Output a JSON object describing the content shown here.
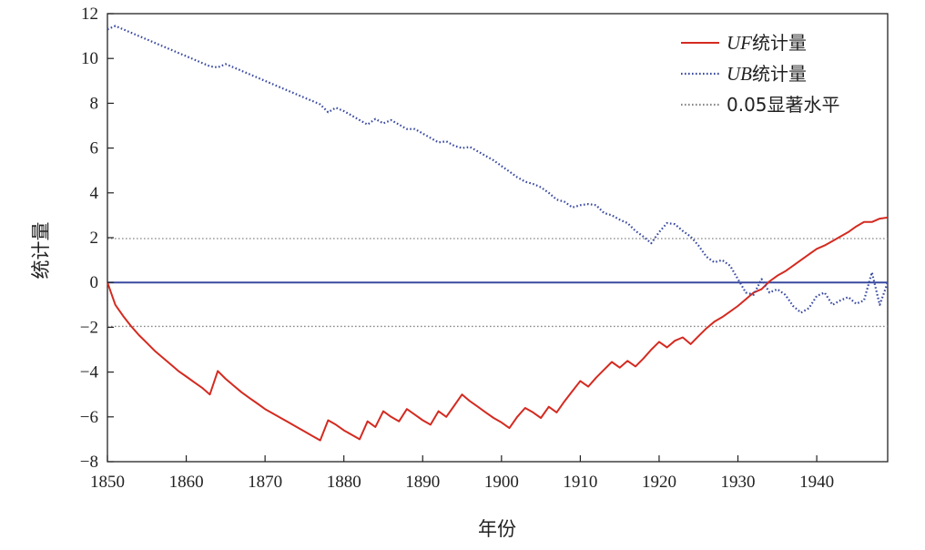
{
  "chart_data": {
    "type": "line",
    "xlabel": "年份",
    "ylabel": "统计量",
    "xlim": [
      1850,
      1949
    ],
    "ylim": [
      -8,
      12
    ],
    "xticks": [
      1850,
      1860,
      1870,
      1880,
      1890,
      1900,
      1910,
      1920,
      1930,
      1940
    ],
    "yticks": [
      -8,
      -6,
      -4,
      -2,
      0,
      2,
      4,
      6,
      8,
      10,
      12
    ],
    "grid": false,
    "legend_position": "top-right",
    "series": [
      {
        "name_prefix": "UF",
        "name_suffix": "统计量",
        "color": "#d42a20",
        "style": "solid",
        "x": [
          1850,
          1851,
          1852,
          1853,
          1854,
          1855,
          1856,
          1857,
          1858,
          1859,
          1860,
          1861,
          1862,
          1863,
          1864,
          1865,
          1866,
          1867,
          1868,
          1869,
          1870,
          1871,
          1872,
          1873,
          1874,
          1875,
          1876,
          1877,
          1878,
          1879,
          1880,
          1881,
          1882,
          1883,
          1884,
          1885,
          1886,
          1887,
          1888,
          1889,
          1890,
          1891,
          1892,
          1893,
          1894,
          1895,
          1896,
          1897,
          1898,
          1899,
          1900,
          1901,
          1902,
          1903,
          1904,
          1905,
          1906,
          1907,
          1908,
          1909,
          1910,
          1911,
          1912,
          1913,
          1914,
          1915,
          1916,
          1917,
          1918,
          1919,
          1920,
          1921,
          1922,
          1923,
          1924,
          1925,
          1926,
          1927,
          1928,
          1929,
          1930,
          1931,
          1932,
          1933,
          1934,
          1935,
          1936,
          1937,
          1938,
          1939,
          1940,
          1941,
          1942,
          1943,
          1944,
          1945,
          1946,
          1947,
          1948,
          1949
        ],
        "values": [
          0,
          -1,
          -1.5,
          -1.95,
          -2.35,
          -2.7,
          -3.05,
          -3.35,
          -3.65,
          -3.95,
          -4.2,
          -4.45,
          -4.7,
          -5.0,
          -3.95,
          -4.3,
          -4.6,
          -4.9,
          -5.15,
          -5.4,
          -5.65,
          -5.85,
          -6.05,
          -6.25,
          -6.45,
          -6.65,
          -6.85,
          -7.05,
          -6.15,
          -6.35,
          -6.6,
          -6.8,
          -7.0,
          -6.2,
          -6.45,
          -5.75,
          -6.0,
          -6.2,
          -5.65,
          -5.9,
          -6.15,
          -6.35,
          -5.75,
          -6.0,
          -5.5,
          -5.0,
          -5.3,
          -5.55,
          -5.8,
          -6.05,
          -6.25,
          -6.5,
          -6.0,
          -5.6,
          -5.8,
          -6.05,
          -5.55,
          -5.8,
          -5.3,
          -4.85,
          -4.4,
          -4.65,
          -4.25,
          -3.9,
          -3.55,
          -3.8,
          -3.5,
          -3.75,
          -3.4,
          -3.0,
          -2.65,
          -2.9,
          -2.6,
          -2.45,
          -2.75,
          -2.4,
          -2.05,
          -1.75,
          -1.55,
          -1.3,
          -1.05,
          -0.75,
          -0.45,
          -0.3,
          0.05,
          0.3,
          0.5,
          0.75,
          1.0,
          1.25,
          1.5,
          1.65,
          1.85,
          2.05,
          2.25,
          2.5,
          2.7,
          2.7,
          2.85,
          2.9
        ]
      },
      {
        "name_prefix": "UB",
        "name_suffix": "统计量",
        "color": "#3a4aa0",
        "style": "dotted",
        "x": [
          1850,
          1851,
          1852,
          1853,
          1854,
          1855,
          1856,
          1857,
          1858,
          1859,
          1860,
          1861,
          1862,
          1863,
          1864,
          1865,
          1866,
          1867,
          1868,
          1869,
          1870,
          1871,
          1872,
          1873,
          1874,
          1875,
          1876,
          1877,
          1878,
          1879,
          1880,
          1881,
          1882,
          1883,
          1884,
          1885,
          1886,
          1887,
          1888,
          1889,
          1890,
          1891,
          1892,
          1893,
          1894,
          1895,
          1896,
          1897,
          1898,
          1899,
          1900,
          1901,
          1902,
          1903,
          1904,
          1905,
          1906,
          1907,
          1908,
          1909,
          1910,
          1911,
          1912,
          1913,
          1914,
          1915,
          1916,
          1917,
          1918,
          1919,
          1920,
          1921,
          1922,
          1923,
          1924,
          1925,
          1926,
          1927,
          1928,
          1929,
          1930,
          1931,
          1932,
          1933,
          1934,
          1935,
          1936,
          1937,
          1938,
          1939,
          1940,
          1941,
          1942,
          1943,
          1944,
          1945,
          1946,
          1947,
          1948,
          1949
        ],
        "values": [
          11.3,
          11.45,
          11.3,
          11.15,
          11.0,
          10.85,
          10.7,
          10.55,
          10.4,
          10.25,
          10.1,
          9.95,
          9.8,
          9.65,
          9.6,
          9.75,
          9.6,
          9.45,
          9.3,
          9.15,
          9.0,
          8.85,
          8.7,
          8.55,
          8.4,
          8.25,
          8.1,
          7.95,
          7.6,
          7.8,
          7.65,
          7.45,
          7.25,
          7.05,
          7.3,
          7.1,
          7.25,
          7.05,
          6.85,
          6.85,
          6.65,
          6.45,
          6.25,
          6.3,
          6.1,
          6.0,
          6.05,
          5.85,
          5.65,
          5.45,
          5.2,
          4.95,
          4.7,
          4.5,
          4.4,
          4.25,
          4.0,
          3.7,
          3.6,
          3.35,
          3.45,
          3.5,
          3.45,
          3.1,
          3.0,
          2.8,
          2.65,
          2.3,
          2.05,
          1.75,
          2.25,
          2.65,
          2.6,
          2.3,
          2.05,
          1.65,
          1.15,
          0.9,
          1.0,
          0.75,
          0.15,
          -0.45,
          -0.55,
          0.15,
          -0.45,
          -0.3,
          -0.55,
          -1.05,
          -1.35,
          -1.15,
          -0.6,
          -0.45,
          -1.0,
          -0.8,
          -0.65,
          -0.95,
          -0.8,
          0.45,
          -1.0,
          0.0
        ]
      }
    ],
    "reference_lines": [
      {
        "y": 1.96,
        "color": "#888888",
        "style": "dotted"
      },
      {
        "y": -1.96,
        "color": "#888888",
        "style": "dotted"
      },
      {
        "y": 0,
        "color": "#3a4aa0",
        "style": "solid"
      }
    ],
    "legend": [
      {
        "prefix": "UF",
        "suffix": "统计量",
        "color": "#d42a20",
        "style": "solid"
      },
      {
        "prefix": "UB",
        "suffix": "统计量",
        "color": "#3a4aa0",
        "style": "dotted"
      },
      {
        "prefix": "",
        "suffix": "0.05显著水平",
        "color": "#888888",
        "style": "dotted"
      }
    ]
  }
}
